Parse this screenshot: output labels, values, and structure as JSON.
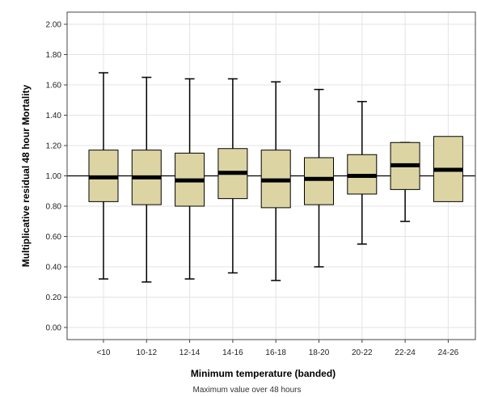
{
  "chart_data": {
    "type": "box",
    "xlabel": "Minimum temperature (banded)",
    "ylabel": "Multiplicative residual 48 hour Mortality",
    "footnote": "Maximum value over 48 hours",
    "ylim": [
      -0.08,
      2.08
    ],
    "yticks": [
      "0.00",
      "0.20",
      "0.40",
      "0.60",
      "0.80",
      "1.00",
      "1.20",
      "1.40",
      "1.60",
      "1.80",
      "2.00"
    ],
    "reference_line": 1.0,
    "grid": true,
    "box_color": "#dcd5a3",
    "categories": [
      "<10",
      "10-12",
      "12-14",
      "14-16",
      "16-18",
      "18-20",
      "20-22",
      "22-24",
      "24-26"
    ],
    "boxes": [
      {
        "min": 0.32,
        "q1": 0.83,
        "median": 0.99,
        "q3": 1.17,
        "max": 1.68
      },
      {
        "min": 0.3,
        "q1": 0.81,
        "median": 0.99,
        "q3": 1.17,
        "max": 1.65
      },
      {
        "min": 0.32,
        "q1": 0.8,
        "median": 0.97,
        "q3": 1.15,
        "max": 1.64
      },
      {
        "min": 0.36,
        "q1": 0.85,
        "median": 1.02,
        "q3": 1.18,
        "max": 1.64
      },
      {
        "min": 0.31,
        "q1": 0.79,
        "median": 0.97,
        "q3": 1.17,
        "max": 1.62
      },
      {
        "min": 0.4,
        "q1": 0.81,
        "median": 0.98,
        "q3": 1.12,
        "max": 1.57
      },
      {
        "min": 0.55,
        "q1": 0.88,
        "median": 1.0,
        "q3": 1.14,
        "max": 1.49
      },
      {
        "min": 0.7,
        "q1": 0.91,
        "median": 1.07,
        "q3": 1.22,
        "max": 1.22
      },
      {
        "min": null,
        "q1": 0.83,
        "median": 1.04,
        "q3": 1.26,
        "max": null
      }
    ]
  }
}
